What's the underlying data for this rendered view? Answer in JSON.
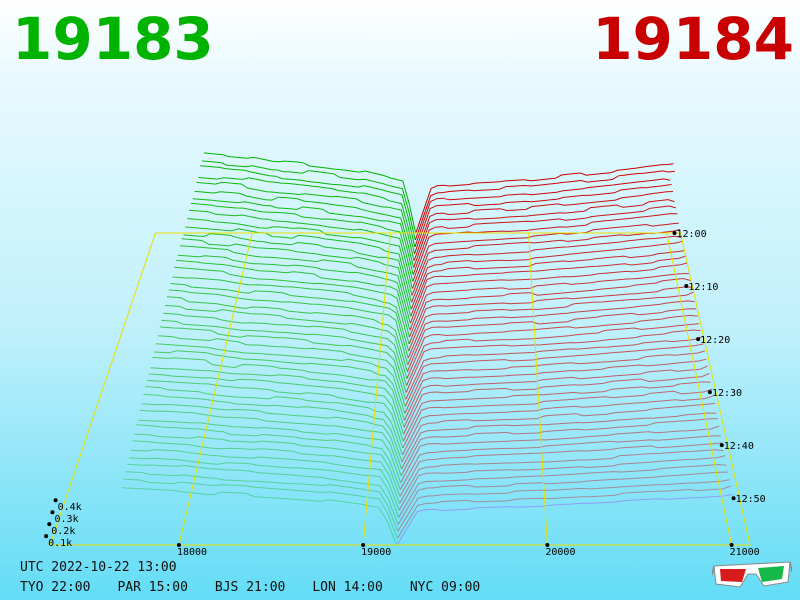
{
  "prices": {
    "bid": "19183",
    "ask": "19184"
  },
  "colors": {
    "bid": "#00b300",
    "ask": "#c80000",
    "grid": "#e8e000",
    "ask_last": "#a020f0"
  },
  "chart_data": {
    "type": "area",
    "x_ticks": [
      {
        "value": 18000,
        "label": "18000"
      },
      {
        "value": 19000,
        "label": "19000"
      },
      {
        "value": 20000,
        "label": "20000"
      },
      {
        "value": 21000,
        "label": "21000"
      }
    ],
    "xlim": [
      17300,
      21100
    ],
    "mid_price": 19183.5,
    "depth_ticks": [
      {
        "value": 100,
        "label": "0.1k"
      },
      {
        "value": 200,
        "label": "0.2k"
      },
      {
        "value": 300,
        "label": "0.3k"
      },
      {
        "value": 400,
        "label": "0.4k"
      }
    ],
    "time_ticks": [
      "12:00",
      "12:10",
      "12:20",
      "12:30",
      "12:40",
      "12:50"
    ],
    "series": [
      {
        "side": "bid",
        "x": [
          17650,
          18000,
          18150,
          18300,
          18500,
          18800,
          19100,
          19183
        ],
        "values": [
          730,
          690,
          650,
          640,
          610,
          560,
          470,
          0
        ]
      },
      {
        "side": "ask",
        "x": [
          19184,
          19300,
          19600,
          20000,
          20300,
          20600,
          20800,
          21050
        ],
        "values": [
          0,
          430,
          460,
          490,
          530,
          570,
          600,
          640
        ]
      }
    ]
  },
  "footer": {
    "utc": "UTC 2022-10-22 13:00",
    "cities": [
      "TYO 22:00",
      "PAR 15:00",
      "BJS 21:00",
      "LON 14:00",
      "NYC 09:00"
    ]
  },
  "icons": {
    "glasses": "3d-glasses-icon"
  }
}
